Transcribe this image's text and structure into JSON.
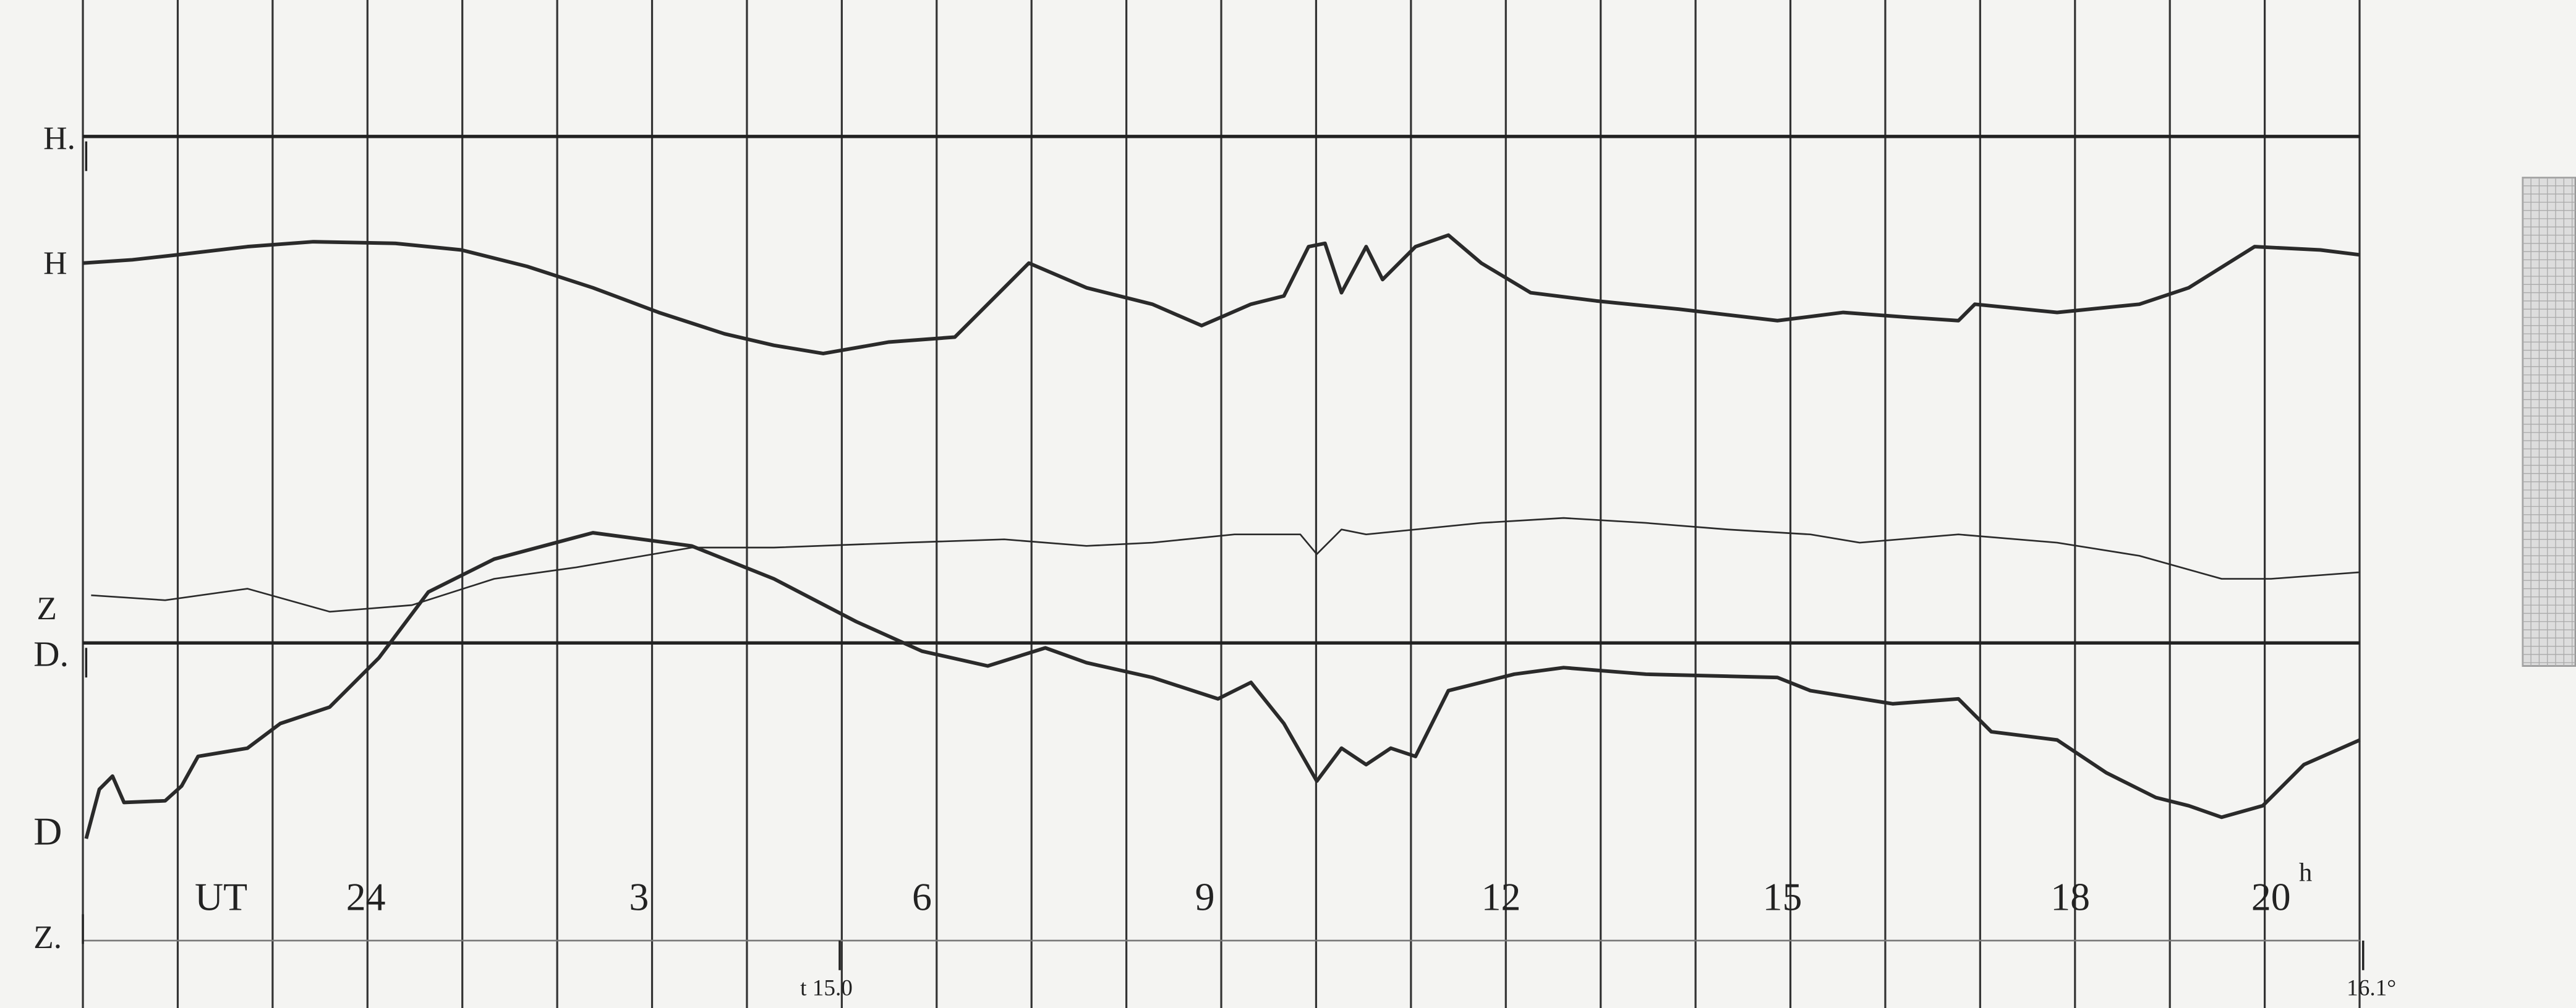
{
  "channels": {
    "h_base": "H.",
    "h": "H",
    "z": "Z",
    "d_base": "D.",
    "d": "D",
    "z_base": "Z."
  },
  "time_axis": {
    "label": "UT",
    "hours": [
      "24",
      "3",
      "6",
      "9",
      "12",
      "15",
      "18",
      "20"
    ],
    "unit": "h"
  },
  "temperatures": {
    "start": "t 15.0",
    "end": "16.1°"
  }
}
